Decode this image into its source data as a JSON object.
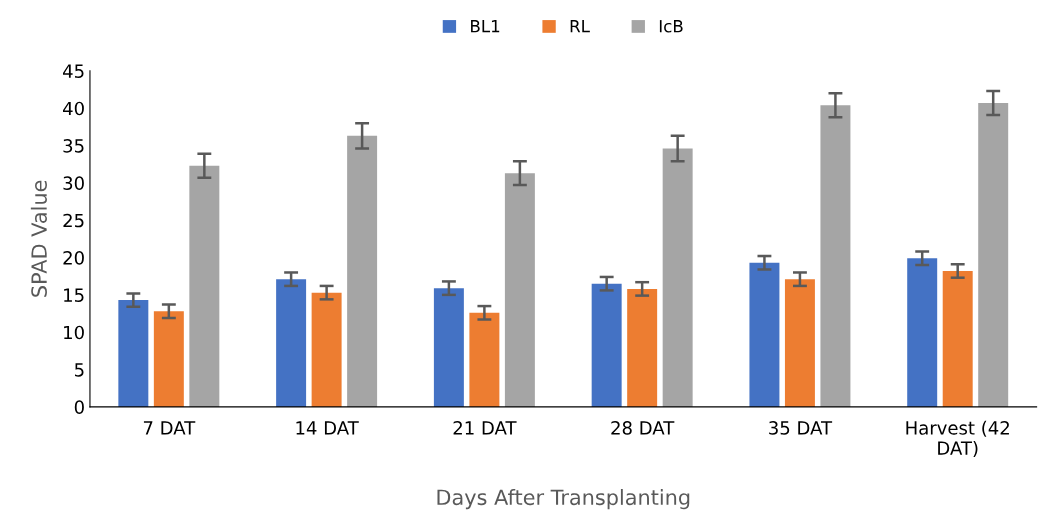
{
  "chart_data": {
    "type": "bar",
    "xlabel": "Days After Transplanting",
    "ylabel": "SPAD Value",
    "categories": [
      "7 DAT",
      "14 DAT",
      "21 DAT",
      "28 DAT",
      "35 DAT",
      "Harvest (42\nDAT)"
    ],
    "series": [
      {
        "name": "BL1",
        "color": "#4472c4",
        "values": [
          14.3,
          17.1,
          15.9,
          16.5,
          19.3,
          19.9
        ],
        "errors": [
          0.9,
          0.9,
          0.9,
          0.9,
          0.9,
          0.9
        ]
      },
      {
        "name": "RL",
        "color": "#ed7d31",
        "values": [
          12.8,
          15.3,
          12.6,
          15.8,
          17.1,
          18.2
        ],
        "errors": [
          0.9,
          0.9,
          0.9,
          0.9,
          0.9,
          0.9
        ]
      },
      {
        "name": "IcB",
        "color": "#a5a5a5",
        "values": [
          32.3,
          36.3,
          31.3,
          34.6,
          40.4,
          40.7
        ],
        "errors": [
          1.6,
          1.7,
          1.6,
          1.7,
          1.6,
          1.6
        ]
      }
    ],
    "ylim": [
      0,
      45
    ],
    "yticks": [
      0,
      5,
      10,
      15,
      20,
      25,
      30,
      35,
      40,
      45
    ],
    "grid": false,
    "legend": "top"
  }
}
